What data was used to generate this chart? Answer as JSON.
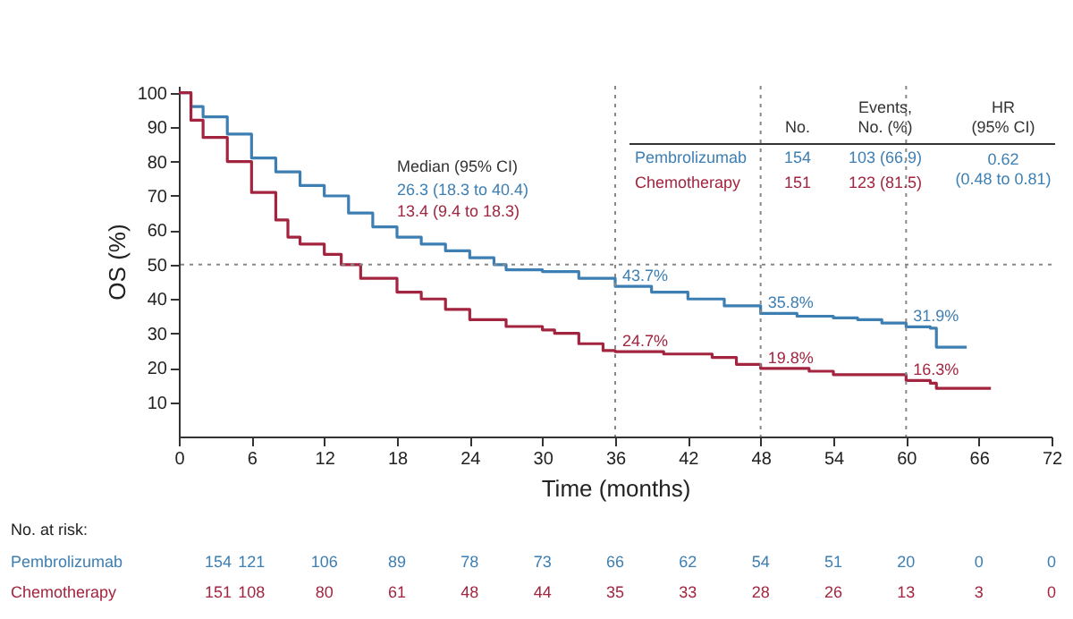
{
  "chart_data": {
    "type": "step",
    "xlabel": "Time (months)",
    "ylabel": "OS (%)",
    "xlim": [
      0,
      72
    ],
    "xticks": [
      0,
      6,
      12,
      18,
      24,
      30,
      36,
      42,
      48,
      54,
      60,
      66,
      72
    ],
    "ylim": [
      0,
      102
    ],
    "yticks": [
      10,
      20,
      30,
      40,
      50,
      60,
      70,
      80,
      90,
      100
    ],
    "legend": false,
    "grid": false,
    "series": [
      {
        "name": "Pembrolizumab",
        "color": "#3d7fb3",
        "x": [
          0,
          1,
          2,
          4,
          6,
          8,
          10,
          12,
          14,
          16,
          18,
          20,
          22,
          24,
          26,
          27,
          30,
          33,
          36,
          39,
          42,
          45,
          48,
          51,
          54,
          56,
          58,
          60,
          62,
          62.5,
          65
        ],
        "values": [
          100,
          96,
          93,
          88,
          81,
          77,
          73,
          70,
          65,
          61,
          58,
          56,
          54,
          52,
          50,
          48.5,
          48,
          46,
          43.7,
          42,
          40,
          38,
          35.8,
          35,
          34.5,
          34,
          33,
          31.9,
          31.5,
          26,
          26
        ]
      },
      {
        "name": "Chemotherapy",
        "color": "#a3243f",
        "x": [
          0,
          1,
          2,
          4,
          6,
          8,
          9,
          10,
          12,
          13.4,
          15,
          18,
          20,
          22,
          24,
          27,
          30,
          31,
          33,
          35,
          36,
          40,
          44,
          46,
          48,
          52,
          54,
          58,
          60,
          62,
          62.5,
          67
        ],
        "values": [
          100,
          92,
          87,
          80,
          71,
          63,
          58,
          56,
          53,
          50,
          46,
          42,
          40,
          37,
          34,
          32,
          31,
          30,
          27,
          25,
          24.7,
          24,
          23,
          21,
          19.8,
          19,
          18,
          18,
          16.3,
          15.5,
          14,
          14
        ]
      }
    ],
    "ref_lines": [
      {
        "axis": "y",
        "value": 50,
        "line_style": "dotted"
      },
      {
        "axis": "x",
        "value": 36,
        "line_style": "dotted"
      },
      {
        "axis": "x",
        "value": 48,
        "line_style": "dotted"
      },
      {
        "axis": "x",
        "value": 60,
        "line_style": "dotted"
      }
    ],
    "annotations": [
      {
        "text": "43.7%",
        "x": 36,
        "y": 43.7
      },
      {
        "text": "24.7%",
        "x": 36,
        "y": 24.7
      },
      {
        "text": "35.8%",
        "x": 48,
        "y": 35.8
      },
      {
        "text": "19.8%",
        "x": 48,
        "y": 19.8
      },
      {
        "text": "31.9%",
        "x": 60,
        "y": 31.9
      },
      {
        "text": "16.3%",
        "x": 60,
        "y": 16.3
      },
      "Median (95% CI)",
      "26.3 (18.3 to 40.4)",
      "13.4 (9.4 to 18.3)",
      "No.",
      "Events, No. (%)",
      "HR (95% CI)",
      "154",
      "103 (66.9)",
      "151",
      "123 (81.5)",
      "0.62 (0.48 to 0.81)",
      "No. at risk:",
      "154",
      "121",
      "106",
      "89",
      "78",
      "73",
      "66",
      "62",
      "54",
      "51",
      "20",
      "0",
      "0",
      "151",
      "108",
      "80",
      "61",
      "48",
      "44",
      "35",
      "33",
      "28",
      "26",
      "13",
      "3",
      "0"
    ]
  }
}
